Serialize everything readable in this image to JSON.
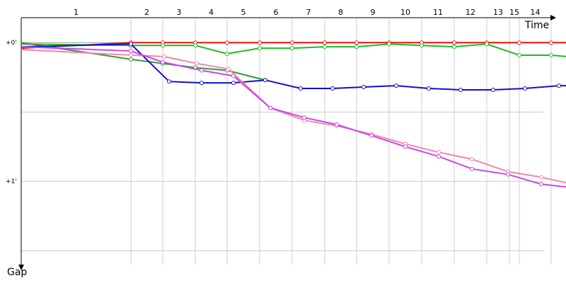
{
  "chart_data": {
    "type": "line",
    "x_title": "Time",
    "y_title": "Gap",
    "xlim": [
      0,
      770
    ],
    "ylim": [
      -0.18,
      1.6
    ],
    "lap_lines": [
      155,
      200,
      246,
      291,
      337,
      383,
      429,
      474,
      520,
      566,
      612,
      658,
      690,
      704,
      749
    ],
    "lap_labels": [
      "1",
      "2",
      "3",
      "4",
      "5",
      "6",
      "7",
      "8",
      "9",
      "10",
      "11",
      "12",
      "13",
      "15",
      "14"
    ],
    "yticks": [
      {
        "value": 0,
        "label": "+0'"
      },
      {
        "value": 1,
        "label": "+1'"
      }
    ],
    "ygrid": [
      0,
      0.5,
      1,
      1.5
    ],
    "series": [
      {
        "color": "#ee1111",
        "x": [
          0,
          155,
          200,
          246,
          291,
          337,
          383,
          429,
          474,
          520,
          566,
          612,
          658,
          704,
          749,
          770
        ],
        "values": [
          0.04,
          0,
          0,
          0,
          0,
          0,
          0,
          0,
          0,
          0,
          0,
          0,
          0,
          0,
          0,
          0
        ]
      },
      {
        "color": "#22bb22",
        "x": [
          0,
          155,
          200,
          246,
          291,
          337,
          383,
          429,
          474,
          520,
          566,
          612,
          658,
          704,
          749,
          770
        ],
        "values": [
          0.01,
          0.02,
          0.02,
          0.02,
          0.08,
          0.04,
          0.04,
          0.03,
          0.03,
          0.01,
          0.02,
          0.03,
          0.01,
          0.09,
          0.09,
          0.1
        ]
      },
      {
        "color": "#339933",
        "x": [
          0,
          155,
          200,
          246,
          291,
          345
        ],
        "values": [
          0,
          0.12,
          0.15,
          0.18,
          0.2,
          0.27
        ]
      },
      {
        "color": "#1111cc",
        "x": [
          0,
          155,
          209,
          255,
          300,
          345,
          395,
          440,
          484,
          530,
          576,
          621,
          667,
          712,
          760,
          770
        ],
        "values": [
          0.03,
          0.01,
          0.28,
          0.29,
          0.29,
          0.27,
          0.33,
          0.33,
          0.32,
          0.31,
          0.33,
          0.34,
          0.34,
          0.33,
          0.31,
          0.31
        ]
      },
      {
        "color": "#ee88aa",
        "x": [
          0,
          155,
          202,
          248,
          293,
          352,
          400,
          446,
          495,
          543,
          590,
          637,
          688,
          735,
          770
        ],
        "values": [
          0.05,
          0.09,
          0.1,
          0.15,
          0.19,
          0.47,
          0.56,
          0.6,
          0.66,
          0.73,
          0.79,
          0.84,
          0.93,
          0.97,
          1.01
        ]
      },
      {
        "color": "#cc44ee",
        "x": [
          0,
          155,
          200,
          255,
          300,
          352,
          400,
          446,
          495,
          543,
          590,
          637,
          688,
          735,
          770
        ],
        "values": [
          0.03,
          0.06,
          0.14,
          0.2,
          0.24,
          0.47,
          0.54,
          0.59,
          0.67,
          0.75,
          0.82,
          0.91,
          0.95,
          1.02,
          1.04
        ]
      }
    ]
  }
}
